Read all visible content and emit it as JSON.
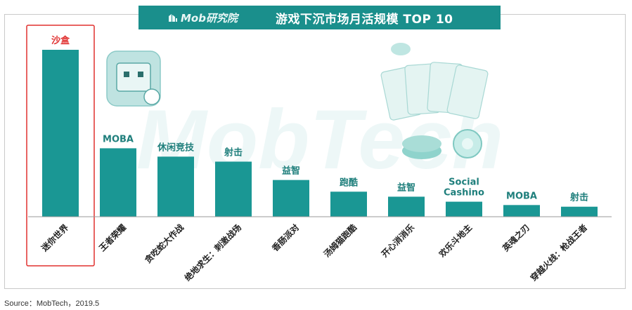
{
  "header": {
    "brand": "Mob研究院",
    "title": "游戏下沉市场月活规模 TOP 10"
  },
  "watermark": "MobTech",
  "source": "Source：MobTech，2019.5",
  "colors": {
    "bar": "#1a9794",
    "header": "#1a8f8c",
    "highlight": "#e0302f",
    "label": "#1f7f7c"
  },
  "chart_data": {
    "type": "bar",
    "title": "游戏下沉市场月活规模 TOP 10",
    "categories": [
      "迷你世界",
      "王者荣耀",
      "贪吃蛇大作战",
      "绝地求生：刺激战场",
      "香肠派对",
      "汤姆猫跑酷",
      "开心消消乐",
      "欢乐斗地主",
      "英魂之刃",
      "穿越火线：枪战王者"
    ],
    "genres": [
      "沙盒",
      "MOBA",
      "休闲竞技",
      "射击",
      "益智",
      "跑酷",
      "益智",
      "Social Cashino",
      "MOBA",
      "射击"
    ],
    "values": [
      100,
      41,
      36,
      33,
      22,
      15,
      12,
      9,
      7,
      6
    ],
    "highlight_index": 0,
    "grid": false,
    "legend": "none"
  }
}
